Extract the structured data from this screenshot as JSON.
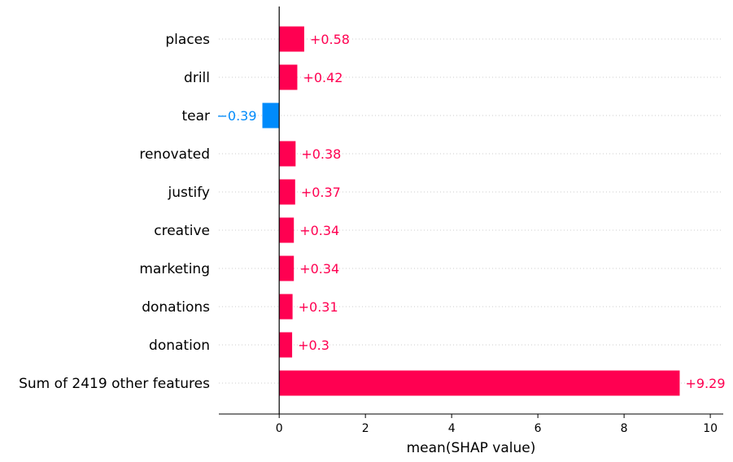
{
  "chart_data": {
    "type": "bar",
    "orientation": "horizontal",
    "categories": [
      "places",
      "drill",
      "tear",
      "renovated",
      "justify",
      "creative",
      "marketing",
      "donations",
      "donation",
      "Sum of 2419 other features"
    ],
    "values": [
      0.58,
      0.42,
      -0.39,
      0.38,
      0.37,
      0.34,
      0.34,
      0.31,
      0.3,
      9.29
    ],
    "value_labels": [
      "+0.58",
      "+0.42",
      "−0.39",
      "+0.38",
      "+0.37",
      "+0.34",
      "+0.34",
      "+0.31",
      "+0.3",
      "+9.29"
    ],
    "xlabel": "mean(SHAP value)",
    "xlim": [
      -1.4,
      10.3
    ],
    "xticks": [
      0,
      2,
      4,
      6,
      8,
      10
    ],
    "colors": {
      "positive": "#ff0051",
      "negative": "#008bfb"
    },
    "grid": "dotted horizontal guide lines per row",
    "legend": "none"
  }
}
